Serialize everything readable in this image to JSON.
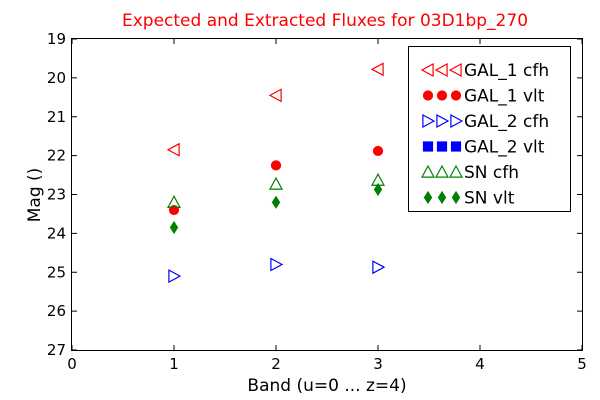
{
  "chart_data": {
    "type": "scatter",
    "title": "Expected and Extracted Fluxes for 03D1bp_270",
    "title_color": "#ff0000",
    "xlabel": "Band (u=0 ... z=4)",
    "ylabel": "Mag ()",
    "xlim": [
      0,
      5
    ],
    "ylim": [
      19,
      27
    ],
    "y_inverted": true,
    "x_ticks": [
      0,
      1,
      2,
      3,
      4,
      5
    ],
    "y_ticks": [
      19,
      20,
      21,
      22,
      23,
      24,
      25,
      26,
      27
    ],
    "grid": false,
    "legend_position": "top-right",
    "series": [
      {
        "name": "GAL_1 cfh",
        "marker": "triangle-left",
        "filled": false,
        "color": "#ff0000",
        "points": [
          {
            "x": 1,
            "y": 21.85
          },
          {
            "x": 2,
            "y": 20.45
          },
          {
            "x": 3,
            "y": 19.78
          }
        ]
      },
      {
        "name": "GAL_1 vlt",
        "marker": "circle",
        "filled": true,
        "color": "#ff0000",
        "points": [
          {
            "x": 1,
            "y": 23.4
          },
          {
            "x": 2,
            "y": 22.25
          },
          {
            "x": 3,
            "y": 21.88
          }
        ]
      },
      {
        "name": "GAL_2 cfh",
        "marker": "triangle-right",
        "filled": false,
        "color": "#0000ff",
        "points": [
          {
            "x": 1,
            "y": 25.1
          },
          {
            "x": 2,
            "y": 24.8
          },
          {
            "x": 3,
            "y": 24.87
          }
        ]
      },
      {
        "name": "GAL_2 vlt",
        "marker": "square",
        "filled": true,
        "color": "#0000ff",
        "points": []
      },
      {
        "name": "SN cfh",
        "marker": "triangle-up",
        "filled": false,
        "color": "#008000",
        "points": [
          {
            "x": 1,
            "y": 23.2
          },
          {
            "x": 2,
            "y": 22.73
          },
          {
            "x": 3,
            "y": 22.63
          }
        ]
      },
      {
        "name": "SN vlt",
        "marker": "thin-diamond",
        "filled": true,
        "color": "#008000",
        "points": [
          {
            "x": 1,
            "y": 23.85
          },
          {
            "x": 2,
            "y": 23.2
          },
          {
            "x": 3,
            "y": 22.87
          }
        ]
      }
    ]
  }
}
